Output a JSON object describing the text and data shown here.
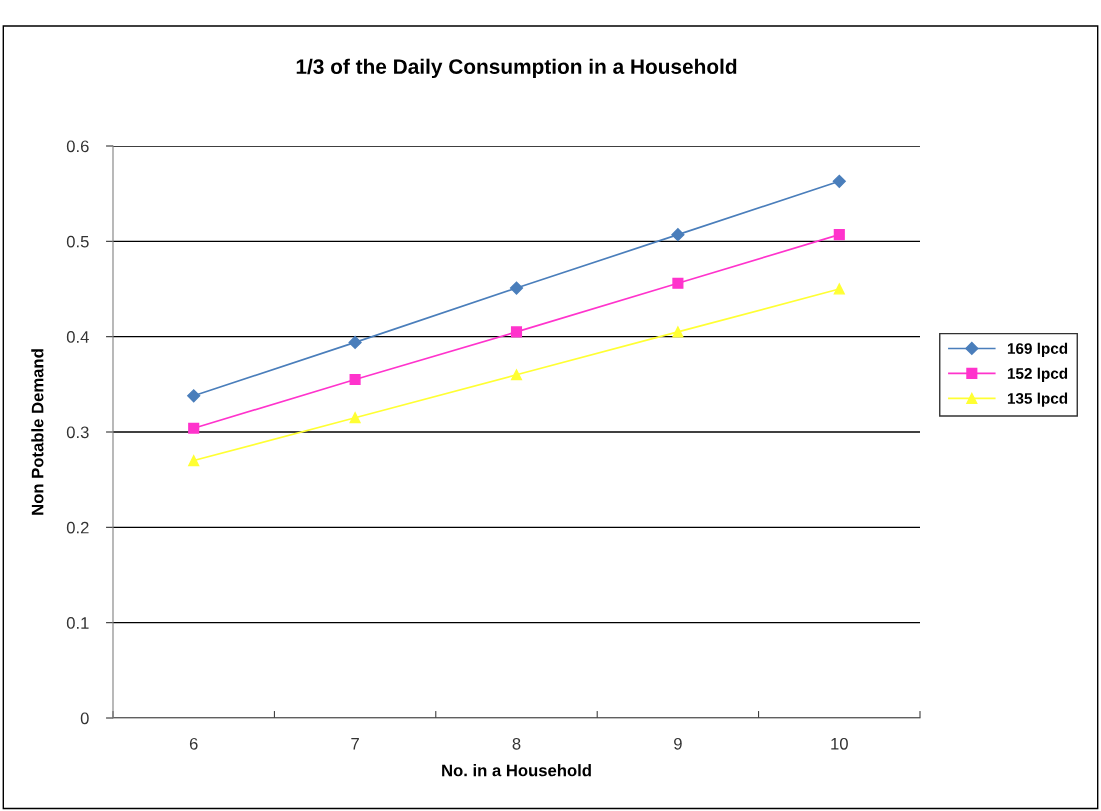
{
  "chart_data": {
    "type": "line",
    "title": "1/3 of the Daily Consumption in a Household",
    "xlabel": "No. in a Household",
    "ylabel": "Non Potable Demand",
    "categories": [
      "6",
      "7",
      "8",
      "9",
      "10"
    ],
    "series": [
      {
        "name": "169 lpcd",
        "color": "#4a7ebb",
        "marker": "diamond",
        "values": [
          0.338,
          0.394,
          0.451,
          0.507,
          0.563
        ]
      },
      {
        "name": "152 lpcd",
        "color": "#ff33cc",
        "marker": "square",
        "values": [
          0.304,
          0.355,
          0.405,
          0.456,
          0.507
        ]
      },
      {
        "name": "135 lpcd",
        "color": "#ffff33",
        "marker": "triangle",
        "values": [
          0.27,
          0.315,
          0.36,
          0.405,
          0.45
        ]
      }
    ],
    "ylim": [
      0,
      0.6
    ],
    "yticks": [
      {
        "value": 0,
        "label": "0"
      },
      0.1,
      0.2,
      0.3,
      0.4,
      0.5,
      0.6
    ],
    "grid": "y",
    "legend": "right",
    "line_style": "solid"
  }
}
